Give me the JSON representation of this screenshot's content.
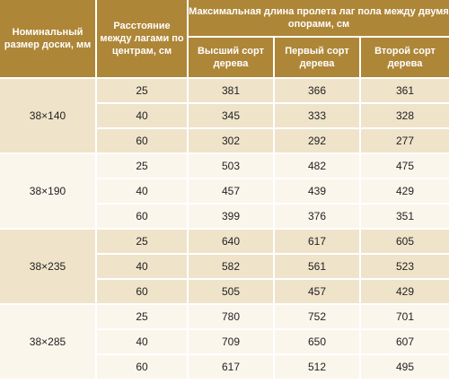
{
  "header": {
    "col_size": "Номинальный размер доски, мм",
    "col_distance": "Расстояние между лагами по центрам, см",
    "col_span_group": "Максимальная длина пролета лаг пола между двумя опорами, см",
    "grade_top": "Высший сорт дерева",
    "grade_first": "Первый сорт дерева",
    "grade_second": "Второй сорт дерева"
  },
  "groups": [
    {
      "size": "38×140",
      "rows": [
        {
          "distance": "25",
          "top": "381",
          "first": "366",
          "second": "361"
        },
        {
          "distance": "40",
          "top": "345",
          "first": "333",
          "second": "328"
        },
        {
          "distance": "60",
          "top": "302",
          "first": "292",
          "second": "277"
        }
      ]
    },
    {
      "size": "38×190",
      "rows": [
        {
          "distance": "25",
          "top": "503",
          "first": "482",
          "second": "475"
        },
        {
          "distance": "40",
          "top": "457",
          "first": "439",
          "second": "429"
        },
        {
          "distance": "60",
          "top": "399",
          "first": "376",
          "second": "351"
        }
      ]
    },
    {
      "size": "38×235",
      "rows": [
        {
          "distance": "25",
          "top": "640",
          "first": "617",
          "second": "605"
        },
        {
          "distance": "40",
          "top": "582",
          "first": "561",
          "second": "523"
        },
        {
          "distance": "60",
          "top": "505",
          "first": "457",
          "second": "429"
        }
      ]
    },
    {
      "size": "38×285",
      "rows": [
        {
          "distance": "25",
          "top": "780",
          "first": "752",
          "second": "701"
        },
        {
          "distance": "40",
          "top": "709",
          "first": "650",
          "second": "607"
        },
        {
          "distance": "60",
          "top": "617",
          "first": "512",
          "second": "495"
        }
      ]
    }
  ],
  "colors": {
    "header_bg": "#ae8637",
    "header_text": "#ffffff",
    "row_dark": "#efe3ca",
    "row_light": "#fbf6ec"
  }
}
